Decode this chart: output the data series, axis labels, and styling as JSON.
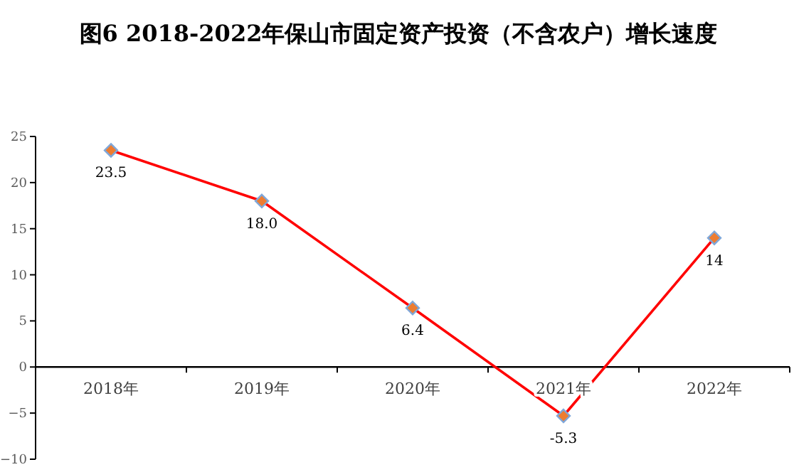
{
  "chart_data": {
    "type": "line",
    "title": "图6  2018-2022年保山市固定资产投资（不含农户）增长速度",
    "categories": [
      "2018年",
      "2019年",
      "2020年",
      "2021年",
      "2022年"
    ],
    "series": [
      {
        "color": "#ff0000",
        "values": [
          23.5,
          18.0,
          6.4,
          -5.3,
          14
        ]
      }
    ],
    "value_labels": [
      "23.5",
      "18.0",
      "6.4",
      "-5.3",
      "14"
    ],
    "ylim": [
      -10,
      25
    ],
    "yticks": [
      -10,
      -5,
      0,
      5,
      10,
      15,
      20,
      25
    ],
    "marker": "diamond",
    "line_style": "solid",
    "grid": false
  }
}
